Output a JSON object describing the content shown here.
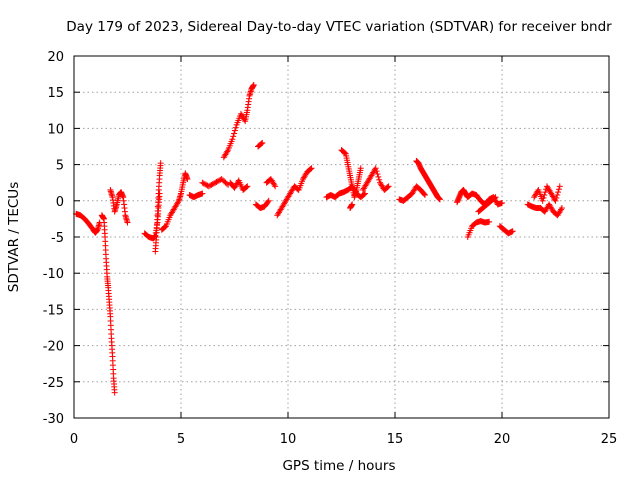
{
  "chart_data": {
    "type": "scatter",
    "title": "Day 179 of 2023, Sidereal Day-to-day VTEC variation (SDTVAR) for receiver bndr",
    "xlabel": "GPS time / hours",
    "ylabel": "SDTVAR / TECUs",
    "xlim": [
      0,
      25
    ],
    "ylim": [
      -30,
      20
    ],
    "xticks": [
      0,
      5,
      10,
      15,
      20,
      25
    ],
    "yticks": [
      -30,
      -25,
      -20,
      -15,
      -10,
      -5,
      0,
      5,
      10,
      15,
      20
    ],
    "xtick_labels": [
      "0",
      "5",
      "10",
      "15",
      "20",
      "25"
    ],
    "ytick_labels": [
      "-30",
      "-25",
      "-20",
      "-15",
      "-10",
      "-5",
      "0",
      "5",
      "10",
      "15",
      "20"
    ],
    "grid": true,
    "marker": "+",
    "color": "#ff0000",
    "series": [
      {
        "name": "SDTVAR",
        "segments": [
          {
            "x": [
              0.1,
              0.3,
              0.5,
              0.7,
              0.9,
              1.0,
              1.1,
              1.2
            ],
            "y": [
              -1.8,
              -2.0,
              -2.5,
              -3.2,
              -4.0,
              -4.4,
              -4.0,
              -3.0
            ]
          },
          {
            "x": [
              1.3,
              1.4,
              1.45,
              1.5,
              1.55,
              1.6,
              1.65,
              1.7,
              1.75,
              1.8,
              1.85,
              1.9
            ],
            "y": [
              -2.0,
              -2.5,
              -5.0,
              -8.0,
              -10.5,
              -12.0,
              -14.0,
              -16.0,
              -19.0,
              -21.5,
              -24.5,
              -26.5
            ]
          },
          {
            "x": [
              1.7,
              1.8,
              1.9,
              2.0,
              2.1,
              2.2,
              2.3,
              2.4,
              2.5
            ],
            "y": [
              1.5,
              0.5,
              -1.5,
              -0.5,
              0.8,
              1.2,
              0.5,
              -2.0,
              -3.0
            ]
          },
          {
            "x": [
              3.3,
              3.5,
              3.7,
              3.8,
              3.9,
              3.95,
              4.0
            ],
            "y": [
              -4.5,
              -5.0,
              -5.2,
              -4.8,
              -3.0,
              -1.0,
              1.0
            ]
          },
          {
            "x": [
              3.8,
              3.85,
              3.9,
              3.95,
              4.0,
              4.05
            ],
            "y": [
              -7.0,
              -5.0,
              -2.0,
              1.0,
              3.5,
              5.2
            ]
          },
          {
            "x": [
              4.1,
              4.3,
              4.5,
              4.7,
              4.9,
              5.0,
              5.1,
              5.2,
              5.3
            ],
            "y": [
              -4.0,
              -3.5,
              -2.0,
              -1.0,
              0.0,
              1.0,
              2.5,
              3.8,
              3.0
            ]
          },
          {
            "x": [
              5.4,
              5.6,
              5.8,
              6.0
            ],
            "y": [
              0.8,
              0.5,
              0.8,
              1.0
            ]
          },
          {
            "x": [
              6.0,
              6.3,
              6.6,
              6.9,
              7.2
            ],
            "y": [
              2.5,
              2.0,
              2.5,
              3.0,
              2.2
            ]
          },
          {
            "x": [
              7.0,
              7.2,
              7.4,
              7.6,
              7.8,
              8.0,
              8.1,
              8.2,
              8.3,
              8.4
            ],
            "y": [
              6.0,
              7.0,
              8.5,
              10.5,
              12.0,
              11.0,
              12.5,
              14.5,
              15.5,
              16.0
            ]
          },
          {
            "x": [
              7.3,
              7.5,
              7.7,
              7.9,
              8.1
            ],
            "y": [
              2.5,
              1.8,
              2.8,
              1.5,
              2.0
            ]
          },
          {
            "x": [
              8.6,
              8.8
            ],
            "y": [
              7.5,
              8.0
            ]
          },
          {
            "x": [
              8.5,
              8.7,
              8.9,
              9.1
            ],
            "y": [
              -0.5,
              -1.0,
              -0.8,
              0.0
            ]
          },
          {
            "x": [
              9.0,
              9.2,
              9.4
            ],
            "y": [
              2.5,
              3.0,
              2.0
            ]
          },
          {
            "x": [
              9.5,
              9.7,
              9.9,
              10.1,
              10.3,
              10.5,
              10.7,
              10.9,
              11.1
            ],
            "y": [
              -2.0,
              -1.0,
              0.0,
              1.0,
              2.0,
              1.5,
              3.0,
              4.0,
              4.5
            ]
          },
          {
            "x": [
              11.8,
              12.0,
              12.2,
              12.4,
              12.6,
              12.8,
              13.0,
              13.2,
              13.4,
              13.6
            ],
            "y": [
              0.5,
              0.8,
              0.5,
              1.0,
              1.2,
              1.5,
              2.0,
              1.0,
              0.5,
              1.0
            ]
          },
          {
            "x": [
              12.5,
              12.7,
              12.8,
              12.9,
              13.0,
              13.1,
              13.2,
              13.3,
              13.4
            ],
            "y": [
              7.0,
              6.5,
              5.0,
              3.5,
              2.0,
              0.5,
              1.5,
              3.0,
              4.5
            ]
          },
          {
            "x": [
              12.9,
              13.0
            ],
            "y": [
              -1.0,
              -0.5
            ]
          },
          {
            "x": [
              13.5,
              13.7,
              13.9,
              14.1,
              14.3,
              14.5,
              14.7
            ],
            "y": [
              1.5,
              2.5,
              3.5,
              4.5,
              2.5,
              1.5,
              2.0
            ]
          },
          {
            "x": [
              15.2,
              15.4,
              15.6,
              15.8,
              16.0,
              16.2,
              16.4
            ],
            "y": [
              0.2,
              0.0,
              0.5,
              1.0,
              2.0,
              1.5,
              0.8
            ]
          },
          {
            "x": [
              16.0,
              16.1,
              16.2,
              16.3,
              16.4,
              16.5,
              16.6,
              16.7,
              16.8,
              16.9,
              17.0,
              17.1
            ],
            "y": [
              5.5,
              5.2,
              4.5,
              4.0,
              3.5,
              3.0,
              2.5,
              2.0,
              1.5,
              1.0,
              0.5,
              0.2
            ]
          },
          {
            "x": [
              17.9,
              18.0,
              18.1,
              18.2,
              18.3,
              18.4,
              18.6,
              18.8,
              19.0,
              19.2,
              19.4,
              19.6,
              19.8,
              20.0
            ],
            "y": [
              -0.2,
              0.5,
              1.2,
              1.5,
              1.0,
              0.5,
              1.0,
              0.8,
              0.0,
              -0.5,
              0.2,
              0.5,
              -0.5,
              -0.3
            ]
          },
          {
            "x": [
              18.4,
              18.6,
              18.8,
              19.0,
              19.2,
              19.4
            ],
            "y": [
              -5.0,
              -3.5,
              -3.0,
              -2.8,
              -3.0,
              -2.9
            ]
          },
          {
            "x": [
              18.9,
              19.1,
              19.3,
              19.5,
              19.7
            ],
            "y": [
              -1.5,
              -1.0,
              -0.5,
              0.0,
              0.5
            ]
          },
          {
            "x": [
              19.9,
              20.1,
              20.3,
              20.5
            ],
            "y": [
              -3.5,
              -4.0,
              -4.5,
              -4.2
            ]
          },
          {
            "x": [
              21.2,
              21.4,
              21.6,
              21.8,
              22.0,
              22.2,
              22.4,
              22.6,
              22.8
            ],
            "y": [
              -0.5,
              -0.8,
              -1.0,
              -1.0,
              -1.5,
              -0.5,
              -1.5,
              -2.0,
              -1.0
            ]
          },
          {
            "x": [
              21.5,
              21.7,
              21.9,
              22.1,
              22.3,
              22.5,
              22.7
            ],
            "y": [
              0.5,
              1.5,
              0.0,
              2.0,
              1.0,
              0.0,
              2.0
            ]
          }
        ]
      }
    ]
  }
}
